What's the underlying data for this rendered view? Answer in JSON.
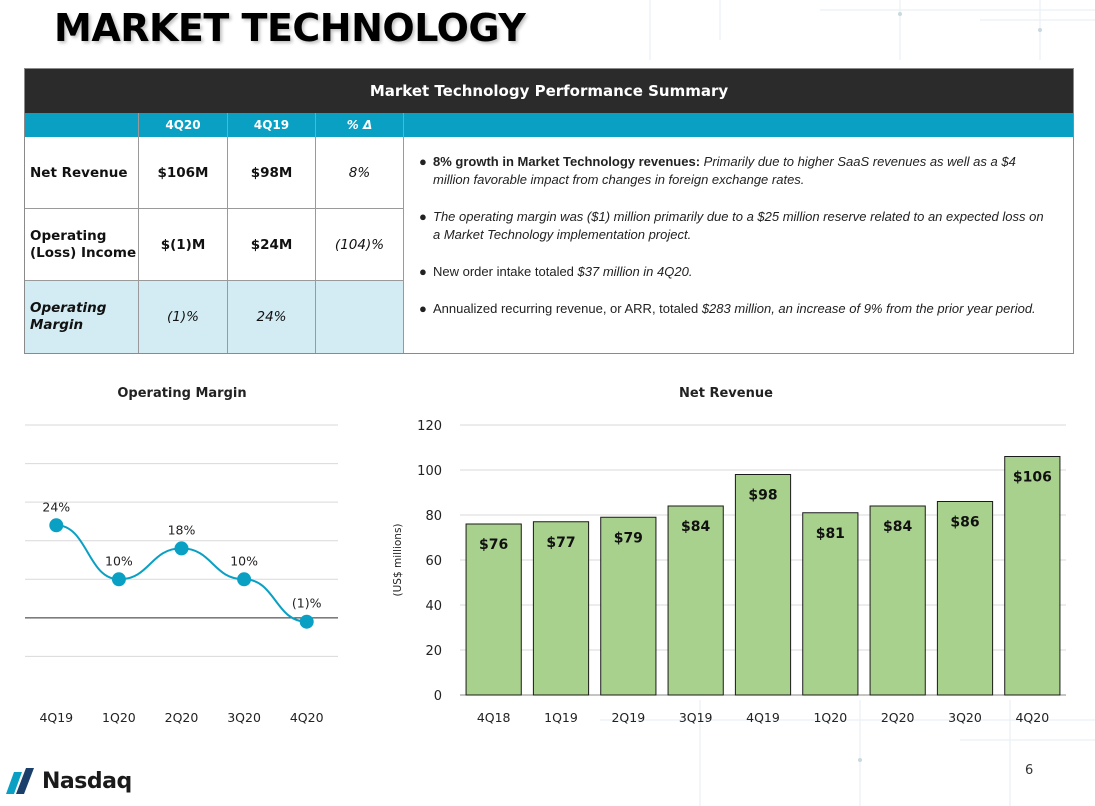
{
  "slide": {
    "title": "MARKET TECHNOLOGY",
    "page_number": "6",
    "logo": "Nasdaq"
  },
  "summary": {
    "title": "Market Technology Performance Summary",
    "columns": [
      "4Q20",
      "4Q19",
      "% Δ"
    ],
    "rows": [
      {
        "label": "Net Revenue",
        "values": [
          "$106M",
          "$98M",
          "8%"
        ]
      },
      {
        "label": "Operating (Loss) Income",
        "values": [
          "$(1)M",
          "$24M",
          "(104)%"
        ]
      },
      {
        "label": "Operating Margin",
        "values": [
          "(1)%",
          "24%",
          ""
        ]
      }
    ],
    "notes": [
      {
        "bullet": "●",
        "lead": "8% growth in Market Technology revenues:",
        "text": " Primarily due to higher SaaS revenues as well as a $4 million favorable impact from changes in foreign exchange rates."
      },
      {
        "bullet": "●",
        "lead": "",
        "text": "The operating margin was ($1) million primarily due to a $25 million reserve related to an expected loss on a Market Technology implementation project."
      },
      {
        "bullet": "●",
        "lead": "New order intake totaled ",
        "text": "$37 million in 4Q20."
      },
      {
        "bullet": "●",
        "lead": "Annualized recurring revenue, or ARR, totaled ",
        "text": "$283 million, an increase of 9% from the prior year period."
      }
    ]
  },
  "chart_data": [
    {
      "type": "line",
      "title": "Operating Margin",
      "categories": [
        "4Q19",
        "1Q20",
        "2Q20",
        "3Q20",
        "4Q20"
      ],
      "values": [
        24,
        10,
        18,
        10,
        -1
      ],
      "data_labels": [
        "24%",
        "10%",
        "18%",
        "10%",
        "(1)%"
      ],
      "ylim": [
        -20,
        50
      ],
      "grid": true,
      "colors": {
        "line": "#0aa0c4",
        "marker": "#0aa0c4"
      }
    },
    {
      "type": "bar",
      "title": "Net Revenue",
      "ylabel": "(US$ millions)",
      "categories": [
        "4Q18",
        "1Q19",
        "2Q19",
        "3Q19",
        "4Q19",
        "1Q20",
        "2Q20",
        "3Q20",
        "4Q20"
      ],
      "values": [
        76,
        77,
        79,
        84,
        98,
        81,
        84,
        86,
        106
      ],
      "data_labels": [
        "$76",
        "$77",
        "$79",
        "$84",
        "$98",
        "$81",
        "$84",
        "$86",
        "$106"
      ],
      "yticks": [
        0,
        20,
        40,
        60,
        80,
        100,
        120
      ],
      "ylim": [
        0,
        120
      ],
      "grid": true,
      "colors": {
        "bar": "#a9d18e",
        "bar_edge": "#1a1a1a"
      }
    }
  ],
  "colors": {
    "header_dark": "#2b2b2b",
    "accent": "#0aa0c4",
    "shade": "#d3ecf3"
  }
}
